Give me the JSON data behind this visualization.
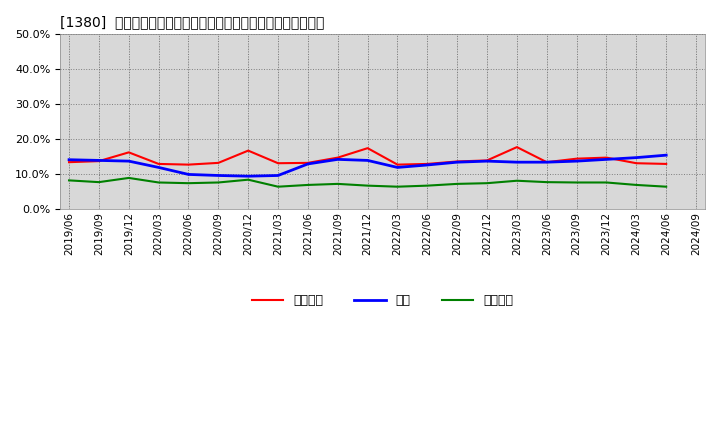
{
  "title": "[1380]  売上債権、在庫、買入債務の総資産に対する比率の推移",
  "ylim": [
    0.0,
    0.5
  ],
  "yticks": [
    0.0,
    0.1,
    0.2,
    0.3,
    0.4,
    0.5
  ],
  "background_color": "#ffffff",
  "plot_bg_color": "#d8d8d8",
  "legend_labels": [
    "売上債権",
    "在庫",
    "買入債務"
  ],
  "line_colors": [
    "#ff0000",
    "#0000ff",
    "#008000"
  ],
  "dates": [
    "2019/06",
    "2019/09",
    "2019/12",
    "2020/03",
    "2020/06",
    "2020/09",
    "2020/12",
    "2021/03",
    "2021/06",
    "2021/09",
    "2021/12",
    "2022/03",
    "2022/06",
    "2022/09",
    "2022/12",
    "2023/03",
    "2023/06",
    "2023/09",
    "2023/12",
    "2024/03",
    "2024/06",
    "2024/09"
  ],
  "uriken": [
    0.135,
    0.138,
    0.163,
    0.13,
    0.128,
    0.133,
    0.168,
    0.132,
    0.133,
    0.148,
    0.175,
    0.128,
    0.13,
    0.137,
    0.14,
    0.178,
    0.135,
    0.145,
    0.148,
    0.132,
    0.13,
    null
  ],
  "zaiko": [
    0.142,
    0.14,
    0.138,
    0.12,
    0.1,
    0.097,
    0.095,
    0.097,
    0.13,
    0.143,
    0.14,
    0.12,
    0.127,
    0.135,
    0.138,
    0.135,
    0.135,
    0.138,
    0.143,
    0.148,
    0.155,
    null
  ],
  "kainyu": [
    0.083,
    0.078,
    0.09,
    0.077,
    0.075,
    0.077,
    0.085,
    0.065,
    0.07,
    0.073,
    0.068,
    0.065,
    0.068,
    0.073,
    0.075,
    0.082,
    0.078,
    0.077,
    0.077,
    0.07,
    0.065,
    null
  ]
}
